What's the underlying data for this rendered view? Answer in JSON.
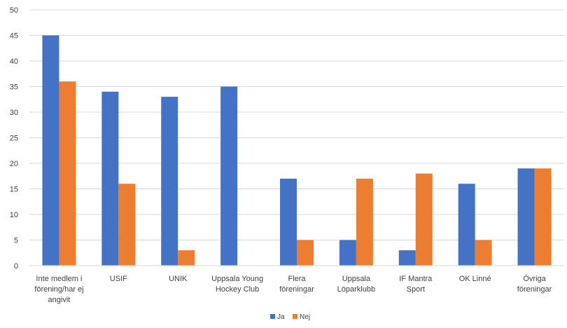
{
  "chart_data": {
    "type": "bar",
    "categories": [
      [
        "Inte medlem i",
        "förening/har ej",
        "angivit"
      ],
      [
        "USIF"
      ],
      [
        "UNIK"
      ],
      [
        "Uppsala Young",
        "Hockey Club"
      ],
      [
        "Flera",
        "föreningar"
      ],
      [
        "Uppsala",
        "Löparklubb"
      ],
      [
        "IF Mantra",
        "Sport"
      ],
      [
        "OK Linné"
      ],
      [
        "Övriga",
        "föreningar"
      ]
    ],
    "series": [
      {
        "name": "Ja",
        "color": "#4472c4",
        "values": [
          45,
          34,
          33,
          35,
          17,
          5,
          3,
          16,
          19
        ]
      },
      {
        "name": "Nej",
        "color": "#ed7d31",
        "values": [
          36,
          16,
          3,
          0,
          5,
          17,
          18,
          5,
          19
        ]
      }
    ],
    "ylim": [
      0,
      50
    ],
    "yticks": [
      0,
      5,
      10,
      15,
      20,
      25,
      30,
      35,
      40,
      45,
      50
    ],
    "grid": true,
    "legend_position": "bottom-center",
    "gridline_color": "#d9d9d9"
  }
}
